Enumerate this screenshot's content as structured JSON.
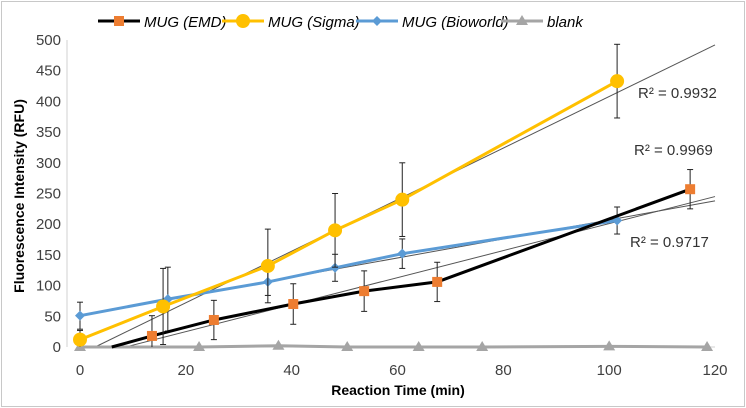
{
  "chart_data": {
    "type": "line",
    "title": "",
    "xlabel": "Reaction Time (min)",
    "ylabel": "Fluorescence  Intensity (RFU)",
    "xlim": [
      0,
      120
    ],
    "ylim": [
      0,
      500
    ],
    "xticks": [
      "0",
      "20",
      "40",
      "60",
      "80",
      "100",
      "120"
    ],
    "yticks": [
      "0",
      "50",
      "100",
      "150",
      "200",
      "250",
      "300",
      "350",
      "400",
      "450",
      "500"
    ],
    "legend_position": "top",
    "grid": false,
    "series": [
      {
        "name": "MUG (EMD)",
        "color": "#000000",
        "marker": "square",
        "marker_color": "#ED7D31",
        "x": [
          13.6,
          25.3,
          40.3,
          53.7,
          67.5,
          115.3
        ],
        "y": [
          18,
          44,
          70,
          91,
          106,
          257
        ],
        "err": [
          33,
          32,
          33,
          33,
          32,
          32
        ],
        "trend": {
          "slope": 2.2,
          "intercept": -19,
          "r2": "R² = 0.9969"
        }
      },
      {
        "name": "MUG (Sigma)",
        "color": "#FFC000",
        "marker": "circle",
        "marker_color": "#FFC000",
        "x": [
          0,
          15.7,
          35.5,
          48.2,
          60.9,
          101.5
        ],
        "y": [
          12,
          66,
          132,
          190,
          240,
          433
        ],
        "err": [
          15,
          62,
          60,
          60,
          60,
          60
        ],
        "trend": {
          "slope": 4.2,
          "intercept": -12,
          "r2": "R² = 0.9932"
        }
      },
      {
        "name": "MUG (Bioworld)",
        "color": "#5B9BD5",
        "marker": "diamond",
        "marker_color": "#5B9BD5",
        "x": [
          0,
          16.6,
          35.5,
          48.2,
          60.9,
          101.5
        ],
        "y": [
          51,
          78,
          106,
          129,
          152,
          206
        ],
        "err": [
          22,
          52,
          22,
          22,
          24,
          22
        ],
        "trend": {
          "slope": 1.55,
          "intercept": 52,
          "r2": "R² = 0.9717"
        }
      },
      {
        "name": "blank",
        "color": "#A5A5A5",
        "marker": "triangle",
        "marker_color": "#A5A5A5",
        "x": [
          0,
          22.5,
          37.5,
          50.5,
          64,
          76,
          100,
          118.5
        ],
        "y": [
          0,
          0,
          2,
          0,
          0,
          0,
          1,
          0
        ],
        "err": null,
        "trend": null
      }
    ]
  }
}
